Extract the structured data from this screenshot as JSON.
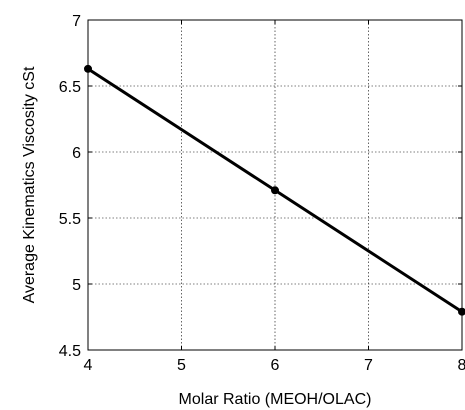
{
  "chart_data": {
    "type": "line",
    "title": "",
    "xlabel": "Molar Ratio (MEOH/OLAC)",
    "ylabel": "Average Kinematics Viscosity cSt",
    "xlim": [
      4,
      8
    ],
    "ylim": [
      4.5,
      7
    ],
    "x_ticks": [
      "4",
      "5",
      "6",
      "7",
      "8"
    ],
    "y_ticks": [
      "4.5",
      "5",
      "5.5",
      "6",
      "6.5",
      "7"
    ],
    "grid": true,
    "series": [
      {
        "x": [
          4,
          6,
          8
        ],
        "values": [
          6.63,
          5.71,
          4.79
        ]
      }
    ]
  }
}
